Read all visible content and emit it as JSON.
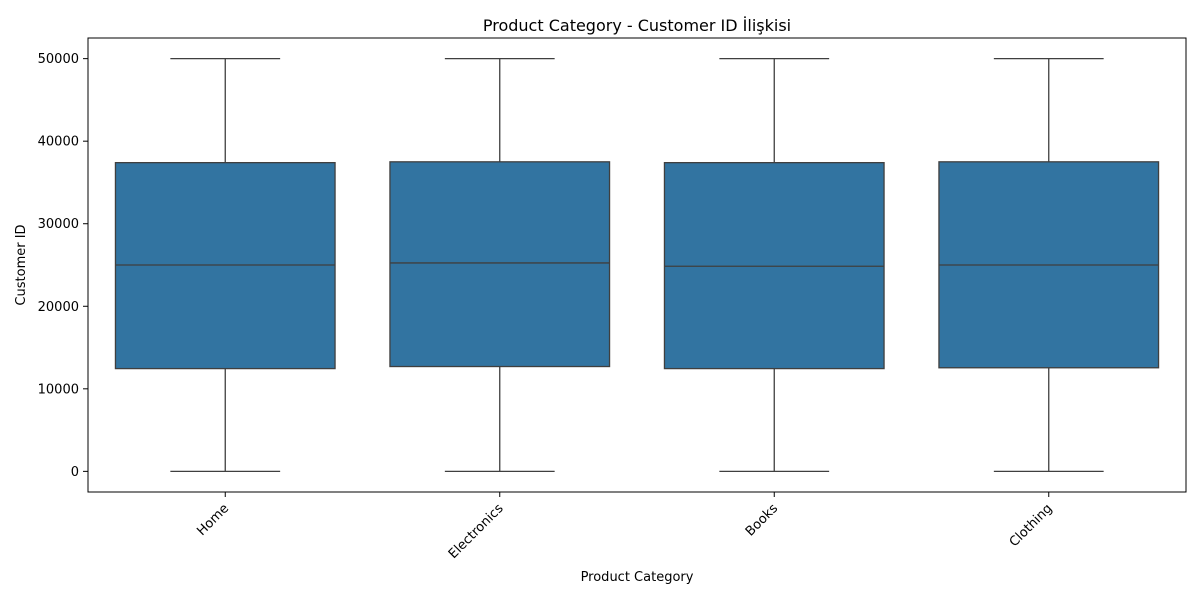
{
  "chart_data": {
    "type": "box",
    "title": "Product Category - Customer ID İlişkisi",
    "xlabel": "Product Category",
    "ylabel": "Customer ID",
    "ylim": [
      -2500,
      52500
    ],
    "yticks": [
      0,
      10000,
      20000,
      30000,
      40000,
      50000
    ],
    "y_tick_labels": [
      "0",
      "10000",
      "20000",
      "30000",
      "40000",
      "50000"
    ],
    "categories": [
      "Home",
      "Electronics",
      "Books",
      "Clothing"
    ],
    "box_color": "#3274a1",
    "line_color": "#3f3f3f",
    "grid": false,
    "boxes": [
      {
        "category": "Home",
        "whisker_low": 0,
        "q1": 12450,
        "median": 25000,
        "q3": 37400,
        "whisker_high": 50000
      },
      {
        "category": "Electronics",
        "whisker_low": 0,
        "q1": 12700,
        "median": 25250,
        "q3": 37500,
        "whisker_high": 50000
      },
      {
        "category": "Books",
        "whisker_low": 0,
        "q1": 12450,
        "median": 24850,
        "q3": 37400,
        "whisker_high": 50000
      },
      {
        "category": "Clothing",
        "whisker_low": 0,
        "q1": 12550,
        "median": 25000,
        "q3": 37500,
        "whisker_high": 50000
      }
    ]
  }
}
